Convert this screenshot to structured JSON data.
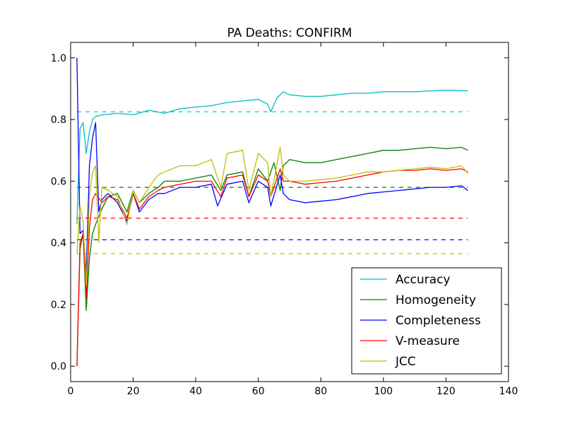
{
  "chart_data": {
    "type": "line",
    "title": "PA Deaths: CONFIRM",
    "xlabel": "",
    "ylabel": "",
    "xlim": [
      0,
      140
    ],
    "ylim": [
      -0.05,
      1.05
    ],
    "xticks": [
      0,
      20,
      40,
      60,
      80,
      100,
      120,
      140
    ],
    "yticks": [
      0.0,
      0.2,
      0.4,
      0.6,
      0.8,
      1.0
    ],
    "xtick_labels": [
      "0",
      "20",
      "40",
      "60",
      "80",
      "100",
      "120",
      "140"
    ],
    "ytick_labels": [
      "0.0",
      "0.2",
      "0.4",
      "0.6",
      "0.8",
      "1.0"
    ],
    "grid": false,
    "legend_position": "bottom-right",
    "x_range": [
      2,
      127
    ],
    "series": [
      {
        "name": "Accuracy",
        "color": "#00bfbf",
        "baseline": 0.825,
        "points": [
          [
            2,
            0.46
          ],
          [
            3,
            0.77
          ],
          [
            4,
            0.79
          ],
          [
            5,
            0.69
          ],
          [
            6,
            0.76
          ],
          [
            7,
            0.8
          ],
          [
            8,
            0.81
          ],
          [
            10,
            0.815
          ],
          [
            15,
            0.82
          ],
          [
            20,
            0.815
          ],
          [
            25,
            0.83
          ],
          [
            30,
            0.82
          ],
          [
            35,
            0.835
          ],
          [
            40,
            0.84
          ],
          [
            45,
            0.845
          ],
          [
            50,
            0.855
          ],
          [
            55,
            0.86
          ],
          [
            60,
            0.865
          ],
          [
            63,
            0.85
          ],
          [
            64,
            0.825
          ],
          [
            66,
            0.87
          ],
          [
            68,
            0.89
          ],
          [
            70,
            0.88
          ],
          [
            75,
            0.875
          ],
          [
            80,
            0.875
          ],
          [
            85,
            0.88
          ],
          [
            90,
            0.885
          ],
          [
            95,
            0.885
          ],
          [
            100,
            0.89
          ],
          [
            110,
            0.89
          ],
          [
            120,
            0.895
          ],
          [
            127,
            0.893
          ]
        ]
      },
      {
        "name": "Homogeneity",
        "color": "#008000",
        "baseline": 0.58,
        "points": [
          [
            2,
            0.0
          ],
          [
            3,
            0.38
          ],
          [
            4,
            0.43
          ],
          [
            5,
            0.18
          ],
          [
            6,
            0.35
          ],
          [
            7,
            0.43
          ],
          [
            8,
            0.46
          ],
          [
            10,
            0.51
          ],
          [
            12,
            0.55
          ],
          [
            15,
            0.56
          ],
          [
            18,
            0.5
          ],
          [
            20,
            0.57
          ],
          [
            22,
            0.53
          ],
          [
            25,
            0.56
          ],
          [
            28,
            0.58
          ],
          [
            30,
            0.6
          ],
          [
            35,
            0.6
          ],
          [
            40,
            0.61
          ],
          [
            45,
            0.62
          ],
          [
            48,
            0.57
          ],
          [
            50,
            0.62
          ],
          [
            55,
            0.63
          ],
          [
            57,
            0.55
          ],
          [
            60,
            0.64
          ],
          [
            63,
            0.6
          ],
          [
            65,
            0.66
          ],
          [
            67,
            0.57
          ],
          [
            68,
            0.65
          ],
          [
            70,
            0.67
          ],
          [
            75,
            0.66
          ],
          [
            80,
            0.66
          ],
          [
            85,
            0.67
          ],
          [
            90,
            0.68
          ],
          [
            95,
            0.69
          ],
          [
            100,
            0.7
          ],
          [
            105,
            0.7
          ],
          [
            110,
            0.705
          ],
          [
            115,
            0.71
          ],
          [
            120,
            0.705
          ],
          [
            125,
            0.71
          ],
          [
            127,
            0.7
          ]
        ]
      },
      {
        "name": "Completeness",
        "color": "#0000ff",
        "baseline": 0.41,
        "points": [
          [
            2,
            1.0
          ],
          [
            3,
            0.43
          ],
          [
            4,
            0.44
          ],
          [
            5,
            0.3
          ],
          [
            6,
            0.65
          ],
          [
            7,
            0.74
          ],
          [
            8,
            0.79
          ],
          [
            9,
            0.5
          ],
          [
            10,
            0.54
          ],
          [
            12,
            0.56
          ],
          [
            15,
            0.53
          ],
          [
            18,
            0.47
          ],
          [
            20,
            0.56
          ],
          [
            22,
            0.5
          ],
          [
            25,
            0.54
          ],
          [
            28,
            0.56
          ],
          [
            30,
            0.56
          ],
          [
            35,
            0.58
          ],
          [
            40,
            0.58
          ],
          [
            45,
            0.59
          ],
          [
            47,
            0.52
          ],
          [
            50,
            0.59
          ],
          [
            55,
            0.6
          ],
          [
            57,
            0.53
          ],
          [
            60,
            0.6
          ],
          [
            63,
            0.58
          ],
          [
            64,
            0.52
          ],
          [
            67,
            0.62
          ],
          [
            68,
            0.56
          ],
          [
            70,
            0.54
          ],
          [
            75,
            0.53
          ],
          [
            80,
            0.535
          ],
          [
            85,
            0.54
          ],
          [
            90,
            0.55
          ],
          [
            95,
            0.56
          ],
          [
            100,
            0.565
          ],
          [
            105,
            0.57
          ],
          [
            110,
            0.575
          ],
          [
            115,
            0.58
          ],
          [
            120,
            0.58
          ],
          [
            125,
            0.585
          ],
          [
            127,
            0.57
          ]
        ]
      },
      {
        "name": "V-measure",
        "color": "#ff0000",
        "baseline": 0.48,
        "points": [
          [
            2,
            0.0
          ],
          [
            3,
            0.4
          ],
          [
            4,
            0.43
          ],
          [
            5,
            0.22
          ],
          [
            6,
            0.45
          ],
          [
            7,
            0.54
          ],
          [
            8,
            0.56
          ],
          [
            10,
            0.53
          ],
          [
            12,
            0.55
          ],
          [
            15,
            0.54
          ],
          [
            18,
            0.48
          ],
          [
            20,
            0.56
          ],
          [
            22,
            0.51
          ],
          [
            25,
            0.55
          ],
          [
            28,
            0.57
          ],
          [
            30,
            0.58
          ],
          [
            35,
            0.59
          ],
          [
            40,
            0.6
          ],
          [
            45,
            0.6
          ],
          [
            48,
            0.55
          ],
          [
            50,
            0.61
          ],
          [
            55,
            0.62
          ],
          [
            57,
            0.55
          ],
          [
            60,
            0.62
          ],
          [
            63,
            0.6
          ],
          [
            64,
            0.55
          ],
          [
            67,
            0.64
          ],
          [
            68,
            0.6
          ],
          [
            70,
            0.6
          ],
          [
            75,
            0.59
          ],
          [
            80,
            0.595
          ],
          [
            85,
            0.6
          ],
          [
            90,
            0.61
          ],
          [
            95,
            0.62
          ],
          [
            100,
            0.63
          ],
          [
            105,
            0.635
          ],
          [
            110,
            0.635
          ],
          [
            115,
            0.64
          ],
          [
            120,
            0.635
          ],
          [
            125,
            0.64
          ],
          [
            127,
            0.63
          ]
        ]
      },
      {
        "name": "JCC",
        "color": "#bfbf00",
        "baseline": 0.365,
        "points": [
          [
            2,
            0.365
          ],
          [
            3,
            0.52
          ],
          [
            4,
            0.47
          ],
          [
            5,
            0.26
          ],
          [
            6,
            0.55
          ],
          [
            7,
            0.63
          ],
          [
            8,
            0.65
          ],
          [
            9,
            0.4
          ],
          [
            10,
            0.58
          ],
          [
            12,
            0.57
          ],
          [
            15,
            0.55
          ],
          [
            18,
            0.46
          ],
          [
            20,
            0.57
          ],
          [
            22,
            0.53
          ],
          [
            25,
            0.58
          ],
          [
            28,
            0.62
          ],
          [
            30,
            0.63
          ],
          [
            35,
            0.65
          ],
          [
            40,
            0.65
          ],
          [
            45,
            0.67
          ],
          [
            48,
            0.58
          ],
          [
            50,
            0.69
          ],
          [
            55,
            0.7
          ],
          [
            57,
            0.57
          ],
          [
            60,
            0.69
          ],
          [
            63,
            0.66
          ],
          [
            64,
            0.55
          ],
          [
            67,
            0.71
          ],
          [
            68,
            0.62
          ],
          [
            70,
            0.6
          ],
          [
            75,
            0.6
          ],
          [
            80,
            0.605
          ],
          [
            85,
            0.61
          ],
          [
            90,
            0.62
          ],
          [
            95,
            0.63
          ],
          [
            100,
            0.63
          ],
          [
            105,
            0.635
          ],
          [
            110,
            0.64
          ],
          [
            115,
            0.645
          ],
          [
            120,
            0.64
          ],
          [
            125,
            0.65
          ],
          [
            127,
            0.625
          ]
        ]
      }
    ]
  }
}
